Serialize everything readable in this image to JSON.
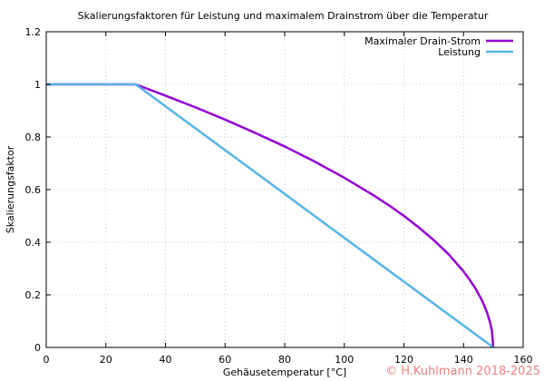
{
  "chart_data": {
    "type": "line",
    "title": "Skalierungsfaktoren für Leistung und maximalem Drainstrom über die Temperatur",
    "xlabel": "Gehäusetemperatur [°C]",
    "ylabel": "Skalierungsfaktor",
    "xlim": [
      0,
      160
    ],
    "ylim": [
      0,
      1.2
    ],
    "xticks": [
      "0",
      "20",
      "40",
      "60",
      "80",
      "100",
      "120",
      "140",
      "160"
    ],
    "yticks": [
      "0",
      "0.2",
      "0.4",
      "0.6",
      "0.8",
      "1",
      "1.2"
    ],
    "grid": true,
    "legend_position": "top-right",
    "series": [
      {
        "name": "Maximaler Drain-Strom",
        "color": "#9400d3",
        "x": [
          0,
          30,
          40,
          50,
          60,
          70,
          80,
          90,
          100,
          110,
          115,
          120,
          125,
          130,
          135,
          140,
          142,
          144,
          146,
          147,
          148,
          149,
          149.5,
          150
        ],
        "y": [
          1,
          1,
          0.957,
          0.913,
          0.866,
          0.816,
          0.764,
          0.707,
          0.645,
          0.577,
          0.54,
          0.5,
          0.456,
          0.408,
          0.354,
          0.289,
          0.258,
          0.224,
          0.183,
          0.158,
          0.129,
          0.091,
          0.065,
          0
        ]
      },
      {
        "name": "Leistung",
        "color": "#56b4e9",
        "x": [
          0,
          30,
          150
        ],
        "y": [
          1,
          1,
          0
        ]
      }
    ]
  },
  "copyright": "© H.Kuhlmann 2018-2025"
}
